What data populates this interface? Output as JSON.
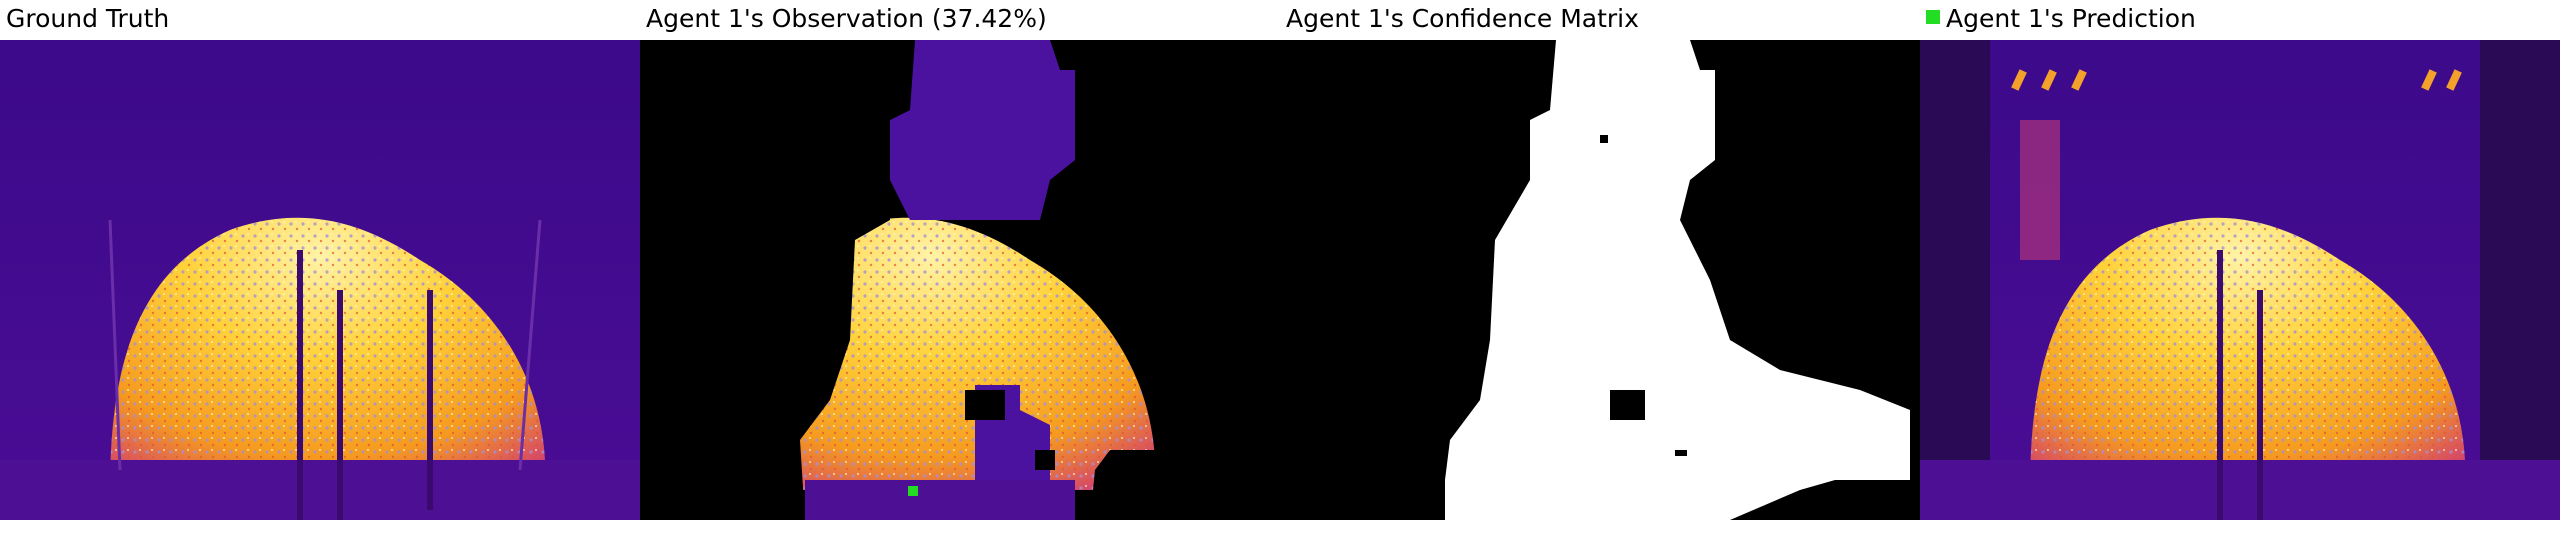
{
  "panels": [
    {
      "title": "Ground Truth"
    },
    {
      "title": "Agent 1's Observation (37.42%)"
    },
    {
      "title": "Agent 1's Confidence Matrix"
    },
    {
      "title": "Agent 1's Prediction"
    }
  ],
  "legend": {
    "color": "#22dd22"
  },
  "colors": {
    "background_purple": "#3d0a8c",
    "heat_yellow": "#ffd23a",
    "heat_orange": "#f08a1c",
    "mask_black": "#000000",
    "mask_white": "#ffffff"
  }
}
